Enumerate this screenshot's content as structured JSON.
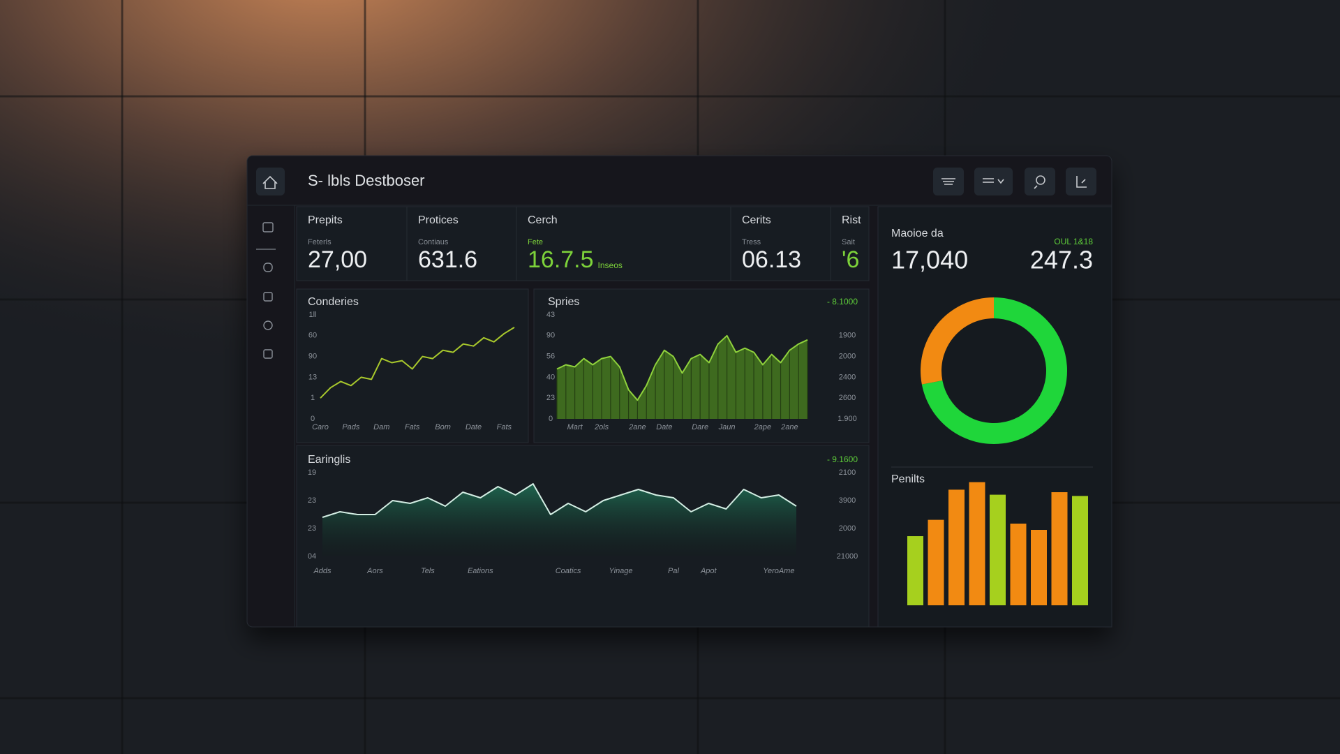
{
  "header": {
    "title": "S- lbls Destboser"
  },
  "kpis": [
    {
      "label": "Prepits",
      "sublabel": "Feterls",
      "value": "27,00"
    },
    {
      "label": "Protices",
      "sublabel": "Contiaus",
      "value": "631.6"
    },
    {
      "label": "Cerch",
      "sublabel": "Fete",
      "value": "16.7.5",
      "unit": "Inseos"
    },
    {
      "label": "Cerits",
      "sublabel": "Tress",
      "value": "06.13"
    },
    {
      "label": "Rist",
      "sublabel": "Sait",
      "value": "'6"
    }
  ],
  "summary": {
    "label": "Maoioe da",
    "value": "17,040",
    "tag": "OUL 1&18",
    "value2": "247.3"
  },
  "chart_data": [
    {
      "type": "line",
      "title": "Conderies",
      "color": "#a9c92c",
      "x": [
        0,
        1,
        2,
        3,
        4,
        5,
        6,
        7,
        8,
        9,
        10,
        11,
        12,
        13,
        14,
        15,
        16,
        17,
        18,
        19
      ],
      "values": [
        1.0,
        1.5,
        1.8,
        1.6,
        2.0,
        1.9,
        2.9,
        2.7,
        2.8,
        2.4,
        3.0,
        2.9,
        3.3,
        3.2,
        3.6,
        3.5,
        3.9,
        3.7,
        4.1,
        4.4
      ],
      "xlim": [
        0,
        19
      ],
      "xticks": [
        {
          "value": 0,
          "label": "Caro"
        },
        {
          "value": 3,
          "label": "Pads"
        },
        {
          "value": 6,
          "label": "Dam"
        },
        {
          "value": 9,
          "label": "Fats"
        },
        {
          "value": 12,
          "label": "Bom"
        },
        {
          "value": 15,
          "label": "Date"
        },
        {
          "value": 18,
          "label": "Fats"
        }
      ],
      "ylim": [
        0,
        5
      ],
      "yticks": [
        0,
        {
          "value": 1,
          "label": "1"
        },
        {
          "value": 2,
          "label": "13"
        },
        {
          "value": 3,
          "label": "90"
        },
        {
          "value": 4,
          "label": "60"
        },
        {
          "value": 5,
          "label": "1ll"
        }
      ]
    },
    {
      "type": "area",
      "title": "Spries",
      "tag": "- 8.1000",
      "color": "#8fd13c",
      "fill_color": "#3e6a1f",
      "x": [
        0,
        1,
        2,
        3,
        4,
        5,
        6,
        7,
        8,
        9,
        10,
        11,
        12,
        13,
        14,
        15,
        16,
        17,
        18,
        19,
        20,
        21,
        22,
        23,
        24,
        25,
        26,
        27,
        28
      ],
      "values": [
        2.4,
        2.6,
        2.5,
        2.9,
        2.6,
        2.9,
        3.0,
        2.5,
        1.4,
        0.9,
        1.6,
        2.6,
        3.3,
        3.0,
        2.2,
        2.9,
        3.1,
        2.7,
        3.6,
        4.0,
        3.2,
        3.4,
        3.2,
        2.6,
        3.1,
        2.7,
        3.3,
        3.6,
        3.8
      ],
      "xlim": [
        0,
        28
      ],
      "xticks": [
        {
          "value": 2,
          "label": "Mart"
        },
        {
          "value": 5,
          "label": "2ols"
        },
        {
          "value": 9,
          "label": "2ane"
        },
        {
          "value": 12,
          "label": "Date"
        },
        {
          "value": 16,
          "label": "Dare"
        },
        {
          "value": 19,
          "label": "Jaun"
        },
        {
          "value": 23,
          "label": "2ape"
        },
        {
          "value": 26,
          "label": "2ane"
        }
      ],
      "ylim": [
        0,
        5
      ],
      "yticks": [
        0,
        {
          "value": 1,
          "label": "23"
        },
        {
          "value": 2,
          "label": "40"
        },
        {
          "value": 3,
          "label": "56"
        },
        {
          "value": 4,
          "label": "90"
        },
        {
          "value": 5,
          "label": "43"
        }
      ],
      "y2lim": [
        0,
        5
      ],
      "y2ticks": [
        {
          "value": 0,
          "label": "1.900"
        },
        {
          "value": 1,
          "label": "2600"
        },
        {
          "value": 2,
          "label": "2400"
        },
        {
          "value": 3,
          "label": "2000"
        },
        {
          "value": 4,
          "label": "1900"
        }
      ]
    },
    {
      "type": "area",
      "title": "Earinglis",
      "tag": "- 9.1600",
      "color": "#d4eee4",
      "fill_color": "#1f6a52",
      "x": [
        0,
        1,
        2,
        3,
        4,
        5,
        6,
        7,
        8,
        9,
        10,
        11,
        12,
        13,
        14,
        15,
        16,
        17,
        18,
        19,
        20,
        21,
        22,
        23,
        24,
        25,
        26,
        27
      ],
      "values": [
        1.4,
        1.6,
        1.5,
        1.5,
        2.0,
        1.9,
        2.1,
        1.8,
        2.3,
        2.1,
        2.5,
        2.2,
        2.6,
        1.5,
        1.9,
        1.6,
        2.0,
        2.2,
        2.4,
        2.2,
        2.1,
        1.6,
        1.9,
        1.7,
        2.4,
        2.1,
        2.2,
        1.8
      ],
      "xlim": [
        0,
        27
      ],
      "xticks": [
        {
          "value": 0,
          "label": "Adds"
        },
        {
          "value": 3,
          "label": "Aors"
        },
        {
          "value": 6,
          "label": "Tels"
        },
        {
          "value": 9,
          "label": "Eations"
        },
        {
          "value": 14,
          "label": "Coatics"
        },
        {
          "value": 17,
          "label": "Yinage"
        },
        {
          "value": 20,
          "label": "Pal"
        },
        {
          "value": 22,
          "label": "Apot"
        },
        {
          "value": 26,
          "label": "YeroAme"
        }
      ],
      "ylim": [
        0,
        3
      ],
      "yticks": [
        {
          "value": 0,
          "label": "04"
        },
        {
          "value": 1,
          "label": "23"
        },
        {
          "value": 2,
          "label": "23"
        },
        {
          "value": 3,
          "label": "19"
        }
      ],
      "y2lim": [
        0,
        3
      ],
      "y2ticks": [
        {
          "value": 0,
          "label": "21000"
        },
        {
          "value": 1,
          "label": "2000"
        },
        {
          "value": 2,
          "label": "3900"
        },
        {
          "value": 3,
          "label": "2100"
        }
      ]
    },
    {
      "type": "pie",
      "values": [
        72,
        28
      ],
      "colors": [
        "#1fd63a",
        "#f28a12"
      ],
      "donut": true
    },
    {
      "type": "bar",
      "title": "Penilts",
      "values": [
        55,
        68,
        92,
        98,
        88,
        65,
        60,
        90,
        87
      ],
      "colors": [
        "#a6d01e",
        "#f28a12",
        "#f28a12",
        "#f28a12",
        "#a6d01e",
        "#f28a12",
        "#f28a12",
        "#f28a12",
        "#a6d01e"
      ],
      "ylim": [
        0,
        100
      ]
    }
  ]
}
